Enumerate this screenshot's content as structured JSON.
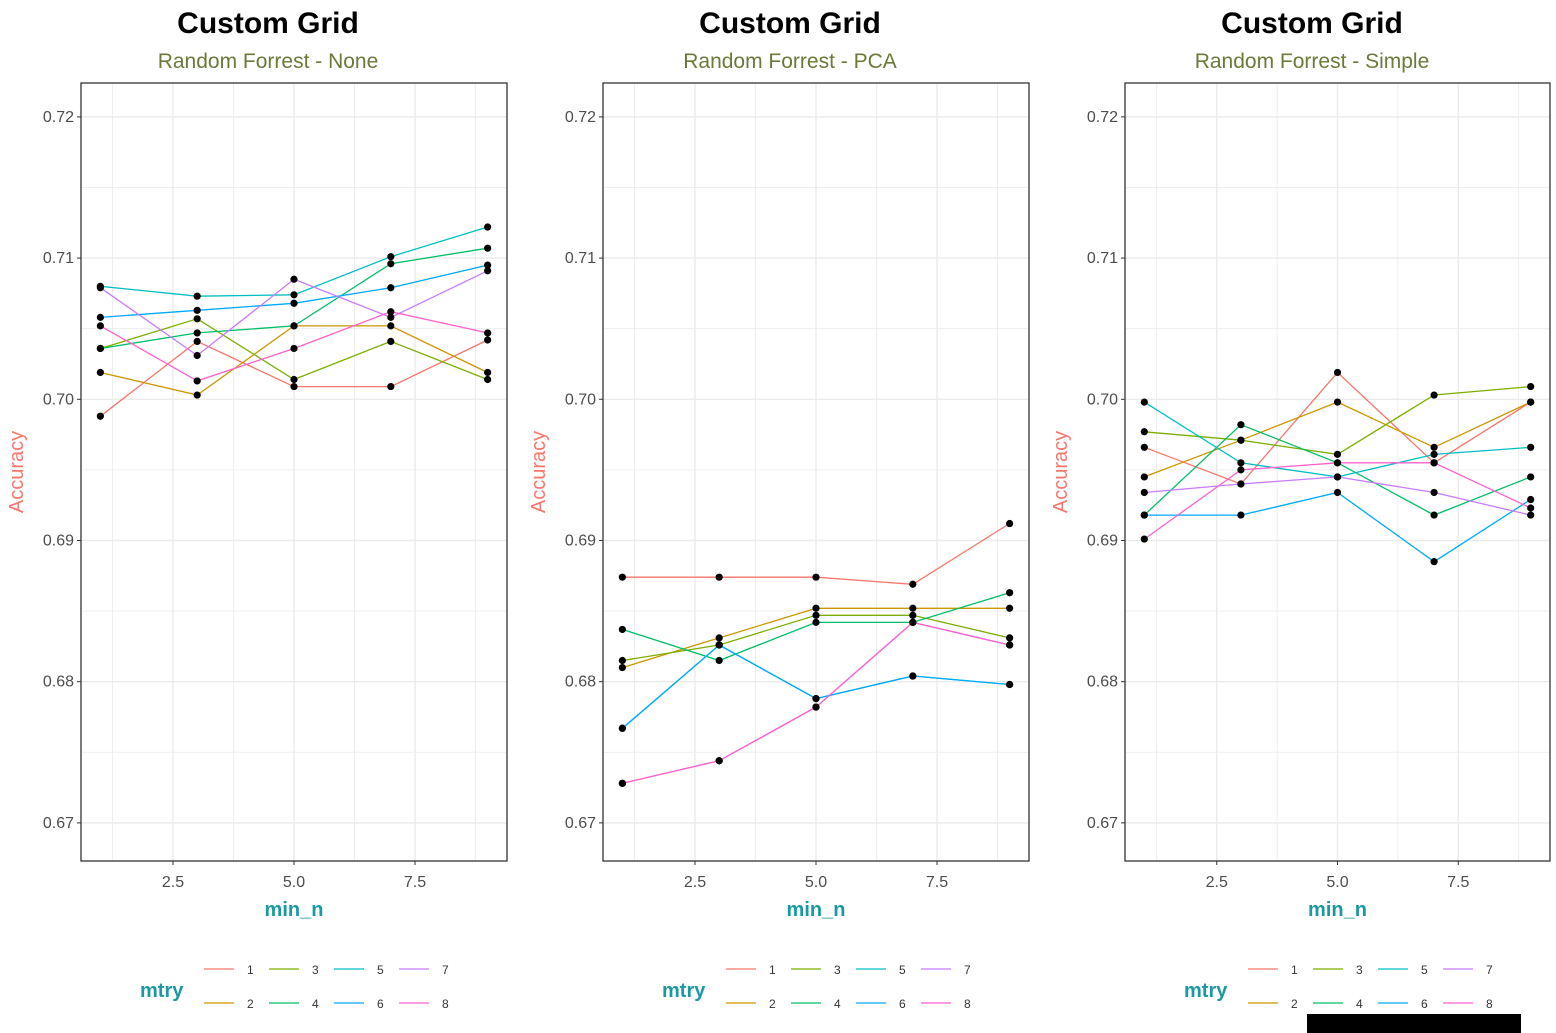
{
  "colors": {
    "mtry_1": "#F8766D",
    "mtry_2": "#CD9600",
    "mtry_3": "#7CAE00",
    "mtry_4": "#00BE67",
    "mtry_5": "#00BFC4",
    "mtry_6": "#00A9FF",
    "mtry_7": "#C77CFF",
    "mtry_8": "#FF61CC",
    "point": "#000000",
    "grid": "#ebebeb",
    "panel_border": "#333333"
  },
  "chart_data": [
    {
      "type": "line",
      "title": "Custom Grid",
      "subtitle": "Random Forrest - None",
      "xlabel": "min_n",
      "ylabel": "Accuracy",
      "x": [
        1,
        3,
        5,
        7,
        9
      ],
      "xlim": [
        0.6,
        9.4
      ],
      "ylim": [
        0.6673,
        0.7224
      ],
      "xticks": [
        2.5,
        5.0,
        7.5
      ],
      "xtick_labels": [
        "2.5",
        "5.0",
        "7.5"
      ],
      "yticks": [
        0.67,
        0.68,
        0.69,
        0.7,
        0.71,
        0.72
      ],
      "ytick_labels": [
        "0.67",
        "0.68",
        "0.69",
        "0.70",
        "0.71",
        "0.72"
      ],
      "legend_title": "mtry",
      "legend_position": "bottom",
      "series": [
        {
          "name": "1",
          "values": [
            0.6988,
            0.7041,
            0.7009,
            0.7009,
            0.7042
          ]
        },
        {
          "name": "2",
          "values": [
            0.7019,
            0.7003,
            0.7052,
            0.7052,
            0.7019
          ]
        },
        {
          "name": "3",
          "values": [
            0.7036,
            0.7057,
            0.7014,
            0.7041,
            0.7014
          ]
        },
        {
          "name": "4",
          "values": [
            0.7036,
            0.7047,
            0.7052,
            0.7096,
            0.7107
          ]
        },
        {
          "name": "5",
          "values": [
            0.708,
            0.7073,
            0.7074,
            0.7101,
            0.7122
          ]
        },
        {
          "name": "6",
          "values": [
            0.7058,
            0.7063,
            0.7068,
            0.7079,
            0.7095
          ]
        },
        {
          "name": "7",
          "values": [
            0.7079,
            0.7031,
            0.7085,
            0.7058,
            0.7091
          ]
        },
        {
          "name": "8",
          "values": [
            0.7052,
            0.7013,
            0.7036,
            0.7062,
            0.7047
          ]
        }
      ]
    },
    {
      "type": "line",
      "title": "Custom Grid",
      "subtitle": "Random Forrest - PCA",
      "xlabel": "min_n",
      "ylabel": "Accuracy",
      "x": [
        1,
        3,
        5,
        7,
        9
      ],
      "xlim": [
        0.6,
        9.4
      ],
      "ylim": [
        0.6673,
        0.7224
      ],
      "xticks": [
        2.5,
        5.0,
        7.5
      ],
      "xtick_labels": [
        "2.5",
        "5.0",
        "7.5"
      ],
      "yticks": [
        0.67,
        0.68,
        0.69,
        0.7,
        0.71,
        0.72
      ],
      "ytick_labels": [
        "0.67",
        "0.68",
        "0.69",
        "0.70",
        "0.71",
        "0.72"
      ],
      "legend_title": "mtry",
      "legend_position": "bottom",
      "series": [
        {
          "name": "1",
          "values": [
            0.6874,
            0.6874,
            0.6874,
            0.6869,
            0.6912
          ]
        },
        {
          "name": "2",
          "values": [
            0.681,
            0.6831,
            0.6852,
            0.6852,
            0.6852
          ]
        },
        {
          "name": "3",
          "values": [
            0.6815,
            0.6826,
            0.6847,
            0.6847,
            0.6831
          ]
        },
        {
          "name": "4",
          "values": [
            0.6837,
            0.6815,
            0.6842,
            0.6842,
            0.6863
          ]
        },
        {
          "name": "5",
          "values": [
            0.6767,
            0.6826,
            0.6788,
            0.6804,
            0.6798
          ]
        },
        {
          "name": "6",
          "values": [
            0.6767,
            0.6826,
            0.6788,
            0.6804,
            0.6798
          ]
        },
        {
          "name": "7",
          "values": [
            0.6728,
            0.6744,
            0.6782,
            0.6842,
            0.6826
          ]
        },
        {
          "name": "8",
          "values": [
            0.6728,
            0.6744,
            0.6782,
            0.6842,
            0.6826
          ]
        }
      ]
    },
    {
      "type": "line",
      "title": "Custom Grid",
      "subtitle": "Random Forrest - Simple",
      "xlabel": "min_n",
      "ylabel": "Accuracy",
      "x": [
        1,
        3,
        5,
        7,
        9
      ],
      "xlim": [
        0.6,
        9.4
      ],
      "ylim": [
        0.6673,
        0.7224
      ],
      "xticks": [
        2.5,
        5.0,
        7.5
      ],
      "xtick_labels": [
        "2.5",
        "5.0",
        "7.5"
      ],
      "yticks": [
        0.67,
        0.68,
        0.69,
        0.7,
        0.71,
        0.72
      ],
      "ytick_labels": [
        "0.67",
        "0.68",
        "0.69",
        "0.70",
        "0.71",
        "0.72"
      ],
      "legend_title": "mtry",
      "legend_position": "bottom",
      "series": [
        {
          "name": "1",
          "values": [
            0.6966,
            0.694,
            0.7019,
            0.6955,
            0.6998
          ]
        },
        {
          "name": "2",
          "values": [
            0.6945,
            0.6971,
            0.6998,
            0.6966,
            0.6998
          ]
        },
        {
          "name": "3",
          "values": [
            0.6977,
            0.6971,
            0.6961,
            0.7003,
            0.7009
          ]
        },
        {
          "name": "4",
          "values": [
            0.6918,
            0.6982,
            0.6955,
            0.6918,
            0.6945
          ]
        },
        {
          "name": "5",
          "values": [
            0.6998,
            0.6955,
            0.6945,
            0.6961,
            0.6966
          ]
        },
        {
          "name": "6",
          "values": [
            0.6918,
            0.6918,
            0.6934,
            0.6885,
            0.6929
          ]
        },
        {
          "name": "7",
          "values": [
            0.6934,
            0.694,
            0.6945,
            0.6934,
            0.6918
          ]
        },
        {
          "name": "8",
          "values": [
            0.6901,
            0.695,
            0.6955,
            0.6955,
            0.6923
          ]
        }
      ]
    }
  ]
}
